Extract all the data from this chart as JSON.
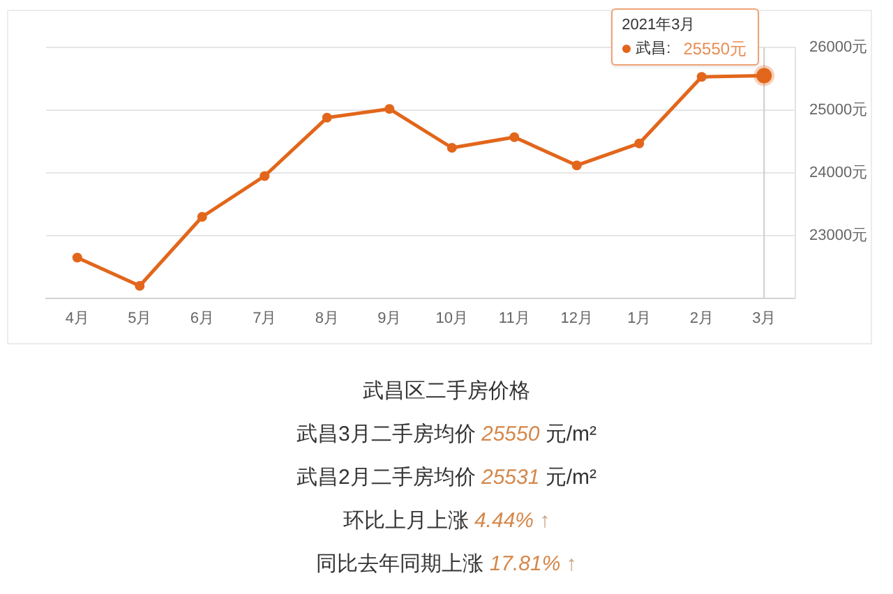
{
  "chart_data": {
    "type": "line",
    "title": "武昌区二手房价格",
    "annotations": [
      "2021年3月",
      "武昌3月二手房均价 25550 元/m²",
      "武昌2月二手房均价 25531 元/m²",
      "环比上月上涨 4.44% ↑",
      "同比去年同期上涨 17.81% ↑"
    ],
    "categories": [
      "4月",
      "5月",
      "6月",
      "7月",
      "8月",
      "9月",
      "10月",
      "11月",
      "12月",
      "1月",
      "2月",
      "3月"
    ],
    "series": [
      {
        "name": "武昌:",
        "color": "#e2661b",
        "values": [
          22650,
          22200,
          23300,
          23950,
          24880,
          25020,
          24400,
          24570,
          24120,
          24470,
          25531,
          25550
        ],
        "value_labels": [
          null,
          null,
          null,
          null,
          null,
          null,
          null,
          null,
          null,
          null,
          null,
          "25550元"
        ]
      }
    ],
    "ylim": [
      22000,
      26000
    ],
    "yticks": [
      {
        "value": 23000,
        "label": "23000元"
      },
      {
        "value": 24000,
        "label": "24000元"
      },
      {
        "value": 25000,
        "label": "25000元"
      },
      {
        "value": 26000,
        "label": "26000元"
      }
    ],
    "ref_lines": [
      {
        "axis": "x",
        "value": "3月",
        "color": "#cccccc"
      }
    ],
    "grid": "y",
    "legend": "top right",
    "marker": "circle",
    "line_style": "solid"
  }
}
